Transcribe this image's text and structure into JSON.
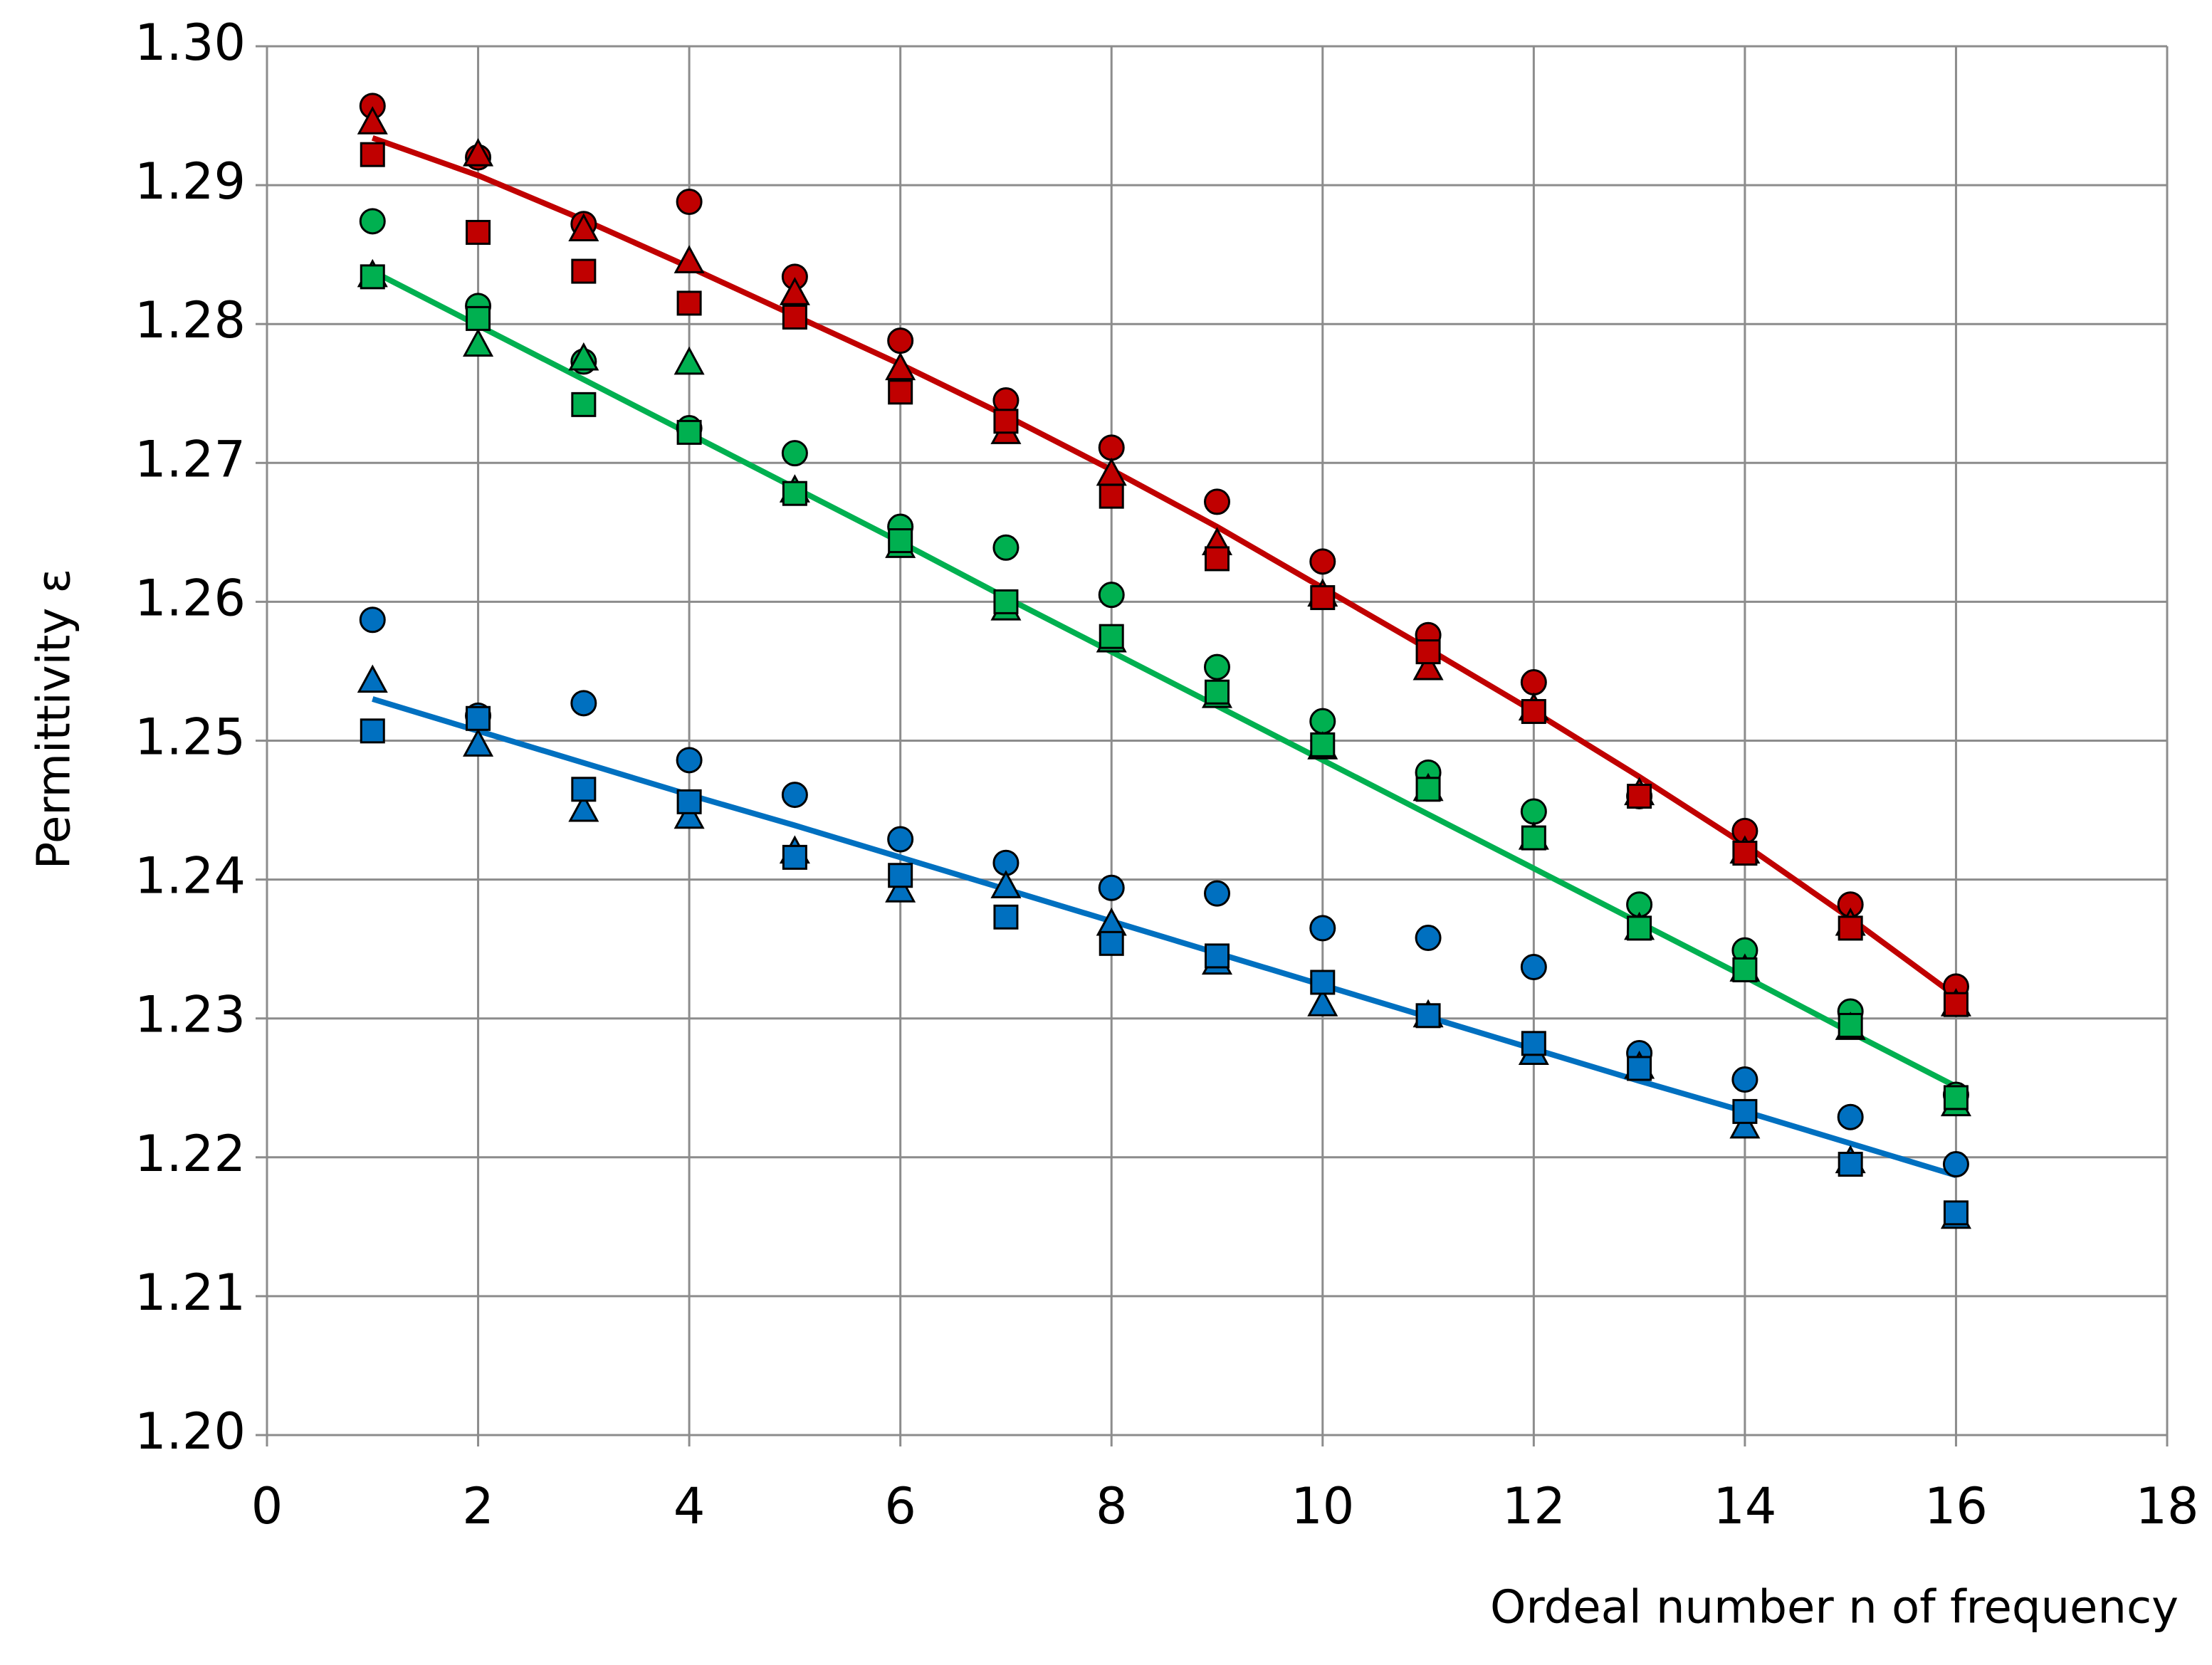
{
  "chart_data": {
    "type": "scatter",
    "x_label": "Ordeal number n of frequency",
    "y_label": "Permittivity ε",
    "x": [
      1,
      2,
      3,
      4,
      5,
      6,
      7,
      8,
      9,
      10,
      11,
      12,
      13,
      14,
      15,
      16
    ],
    "xlim": [
      0,
      18
    ],
    "xticks": [
      0,
      2,
      4,
      6,
      8,
      10,
      12,
      14,
      16,
      18
    ],
    "ylim": [
      1.2,
      1.3
    ],
    "yticks": [
      {
        "value": 1.2,
        "label": "1.20"
      },
      1.21,
      1.22,
      1.23,
      1.24,
      1.25,
      1.26,
      1.27,
      1.28,
      1.29,
      {
        "value": 1.3,
        "label": "1.30"
      }
    ],
    "grid": true,
    "series": [
      {
        "color": "#c00000",
        "mode": "line",
        "values": [
          1.2934,
          1.2907,
          1.2875,
          1.2841,
          1.2806,
          1.2771,
          1.2734,
          1.2695,
          1.2654,
          1.261,
          1.2566,
          1.2521,
          1.2474,
          1.2425,
          1.2372,
          1.2316
        ]
      },
      {
        "color": "#00b050",
        "mode": "line",
        "values": [
          1.2838,
          1.2799,
          1.276,
          1.2721,
          1.2682,
          1.2643,
          1.2603,
          1.2564,
          1.2525,
          1.2486,
          1.2447,
          1.2408,
          1.2369,
          1.233,
          1.229,
          1.2251
        ]
      },
      {
        "color": "#0070c0",
        "mode": "line",
        "values": [
          1.253,
          1.2507,
          1.2484,
          1.2461,
          1.2439,
          1.2416,
          1.2393,
          1.237,
          1.2347,
          1.2324,
          1.2301,
          1.2278,
          1.2255,
          1.2233,
          1.221,
          1.2187
        ]
      },
      {
        "color": "#c00000",
        "marker": "circle",
        "values": [
          1.2957,
          1.292,
          1.2872,
          1.2888,
          1.2834,
          1.2788,
          1.2745,
          1.2711,
          1.2672,
          1.2629,
          1.2576,
          1.2542,
          1.246,
          1.2435,
          1.2382,
          1.2323
        ]
      },
      {
        "color": "#c00000",
        "marker": "triangle",
        "values": [
          1.2945,
          1.2922,
          1.2868,
          1.2845,
          1.2822,
          1.2768,
          1.2722,
          1.2692,
          1.2642,
          1.2605,
          1.2552,
          1.2523,
          1.2462,
          1.242,
          1.2368,
          1.231
        ]
      },
      {
        "color": "#c00000",
        "marker": "square",
        "values": [
          1.2922,
          1.2866,
          1.2838,
          1.2815,
          1.2805,
          1.2751,
          1.273,
          1.2676,
          1.2631,
          1.2603,
          1.2564,
          1.2521,
          1.246,
          1.2419,
          1.2365,
          1.231
        ]
      },
      {
        "color": "#00b050",
        "marker": "circle",
        "values": [
          1.2874,
          1.2813,
          1.2773,
          1.2725,
          1.2707,
          1.2654,
          1.2639,
          1.2605,
          1.2553,
          1.2514,
          1.2477,
          1.2449,
          1.2382,
          1.2349,
          1.2305,
          1.2245
        ]
      },
      {
        "color": "#00b050",
        "marker": "triangle",
        "values": [
          1.2835,
          1.2785,
          1.2775,
          1.2772,
          1.268,
          1.264,
          1.2595,
          1.2572,
          1.2532,
          1.2495,
          1.2465,
          1.243,
          1.2365,
          1.2335,
          1.2293,
          1.2238
        ]
      },
      {
        "color": "#00b050",
        "marker": "square",
        "values": [
          1.2834,
          1.2804,
          1.2742,
          1.2722,
          1.2678,
          1.2644,
          1.26,
          1.2575,
          1.2535,
          1.2497,
          1.2465,
          1.243,
          1.2365,
          1.2335,
          1.2295,
          1.2243
        ]
      },
      {
        "color": "#0070c0",
        "marker": "circle",
        "values": [
          1.2587,
          1.2518,
          1.2527,
          1.2486,
          1.2461,
          1.2429,
          1.2412,
          1.2394,
          1.239,
          1.2365,
          1.2358,
          1.2337,
          1.2275,
          1.2256,
          1.2229,
          1.2195
        ]
      },
      {
        "color": "#0070c0",
        "marker": "triangle",
        "values": [
          1.2543,
          1.2497,
          1.245,
          1.2445,
          1.242,
          1.2392,
          1.2395,
          1.2368,
          1.234,
          1.231,
          1.2302,
          1.2275,
          1.2265,
          1.2222,
          1.2197,
          1.2157
        ]
      },
      {
        "color": "#0070c0",
        "marker": "square",
        "values": [
          1.2507,
          1.2516,
          1.2465,
          1.2456,
          1.2416,
          1.2403,
          1.2373,
          1.2354,
          1.2345,
          1.2326,
          1.2302,
          1.2282,
          1.2264,
          1.2233,
          1.2195,
          1.216
        ]
      }
    ]
  }
}
